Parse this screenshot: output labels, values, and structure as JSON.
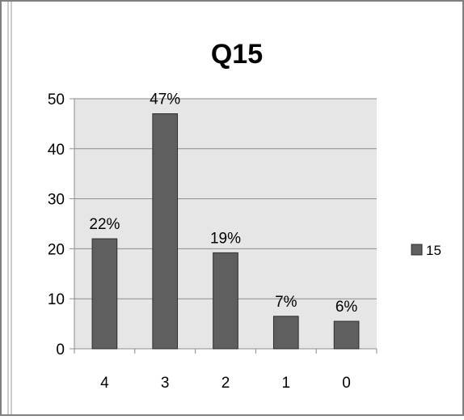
{
  "chart_data": {
    "type": "bar",
    "title": "Q15",
    "categories": [
      "4",
      "3",
      "2",
      "1",
      "0"
    ],
    "series": [
      {
        "name": "15",
        "values": [
          22,
          47,
          19.2,
          6.5,
          5.5
        ]
      }
    ],
    "data_labels": [
      "22%",
      "47%",
      "19%",
      "7%",
      "6%"
    ],
    "ylim": [
      0,
      50
    ],
    "yticks": [
      0,
      10,
      20,
      30,
      40,
      50
    ],
    "grid": true,
    "legend": "right",
    "colors": {
      "bar": "#5f5f5f",
      "bar_stroke": "#2e2e2e",
      "plot_background": "#e6e6e6",
      "gridline": "#8c8c8c",
      "axis": "#8c8c8c",
      "text": "#000000"
    }
  }
}
